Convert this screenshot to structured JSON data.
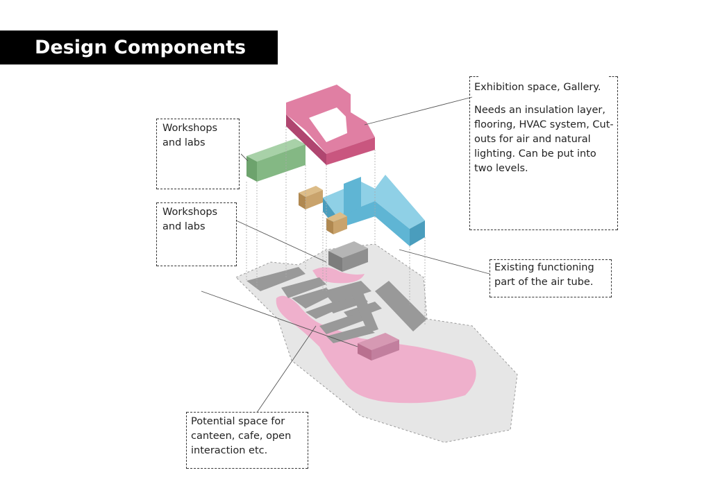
{
  "title": "Design Components",
  "colors": {
    "gallery": "#c9567f",
    "workshop": "#84b884",
    "tube": "#5fb5d4",
    "tan": "#c9a36c",
    "existing": "#8f8f8f",
    "site": "#e6e6e6",
    "open_space": "#efb0cc",
    "canteen_block": "#c27f9e"
  },
  "labels": {
    "exhibition_title": "Exhibition space, Gallery.",
    "exhibition_body": "Needs an insulation layer, flooring, HVAC system, Cut- outs for air and natural lighting. Can be put into two levels.",
    "workshops_top": "Workshops and labs",
    "workshops_mid": "Workshops and labs",
    "air_tube": "Existing functioning part of the air tube.",
    "canteen": "Potential space for canteen, cafe, open interaction etc."
  }
}
